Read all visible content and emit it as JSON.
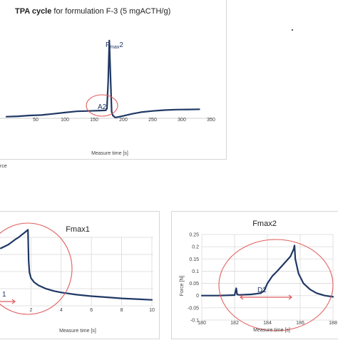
{
  "chart_data": [
    {
      "type": "line",
      "title_bold": "TPA cycle",
      "title_rest": " for formulation F-3 (5 mgACTH/g)",
      "xlabel": "Measure time [s]",
      "ylabel_fragment": "rce",
      "xlim": [
        0,
        350
      ],
      "x_ticks": [
        50,
        100,
        150,
        200,
        250,
        300,
        350
      ],
      "annotations": [
        "Fmax2",
        "A2"
      ],
      "series": [
        {
          "x": [
            0,
            20,
            40,
            60,
            80,
            100,
            120,
            140,
            160,
            170,
            172,
            174,
            176,
            178,
            180,
            182,
            186,
            190,
            200,
            215,
            230,
            250,
            270,
            290,
            310,
            330
          ],
          "y": [
            0.02,
            0.025,
            0.035,
            0.04,
            0.055,
            0.07,
            0.085,
            0.09,
            0.095,
            0.097,
            0.12,
            0.45,
            0.95,
            0.5,
            0.08,
            0.035,
            0.01,
            0.015,
            0.03,
            0.055,
            0.075,
            0.09,
            0.1,
            0.106,
            0.108,
            0.11
          ]
        }
      ]
    },
    {
      "type": "line",
      "title": "Fmax1",
      "xlabel": "Measure time [s]",
      "xlim": [
        0,
        10
      ],
      "x_ticks": [
        2,
        4,
        6,
        8,
        10
      ],
      "annotation": "1",
      "series": [
        {
          "x": [
            0,
            0.5,
            1.0,
            1.2,
            1.4,
            1.6,
            1.8,
            1.85,
            1.9,
            2.0,
            2.2,
            2.5,
            3,
            3.5,
            4,
            5,
            6,
            7,
            8,
            9,
            10
          ],
          "y": [
            0.155,
            0.165,
            0.18,
            0.185,
            0.192,
            0.198,
            0.205,
            0.12,
            0.09,
            0.075,
            0.064,
            0.055,
            0.046,
            0.04,
            0.036,
            0.03,
            0.026,
            0.023,
            0.02,
            0.018,
            0.016
          ]
        }
      ]
    },
    {
      "type": "line",
      "title": "Fmax2",
      "xlabel": "Measure time [s]",
      "ylabel": "Force [N]",
      "xlim": [
        180,
        188
      ],
      "ylim": [
        -0.1,
        0.25
      ],
      "x_ticks": [
        180,
        182,
        184,
        186,
        188
      ],
      "y_ticks": [
        "0.25",
        "0.2",
        "0.15",
        "0.1",
        "0.05",
        "0",
        "-0.05",
        "-0.1"
      ],
      "x_tick_labels": [
        "180",
        "182",
        "184",
        "186",
        "188"
      ],
      "annotation": "D2",
      "series": [
        {
          "x": [
            180,
            181,
            182,
            182.1,
            182.15,
            182.2,
            182.3,
            183,
            183.6,
            183.8,
            184,
            184.3,
            184.6,
            185,
            185.4,
            185.6,
            185.65,
            185.7,
            185.9,
            186.2,
            186.6,
            187,
            187.5,
            188
          ],
          "y": [
            0,
            0,
            0.002,
            0.03,
            0.005,
            0.004,
            0.003,
            0.005,
            0.01,
            0.02,
            0.05,
            0.08,
            0.1,
            0.13,
            0.16,
            0.19,
            0.205,
            0.15,
            0.09,
            0.05,
            0.025,
            0.01,
            0.0,
            -0.005
          ]
        }
      ]
    }
  ]
}
